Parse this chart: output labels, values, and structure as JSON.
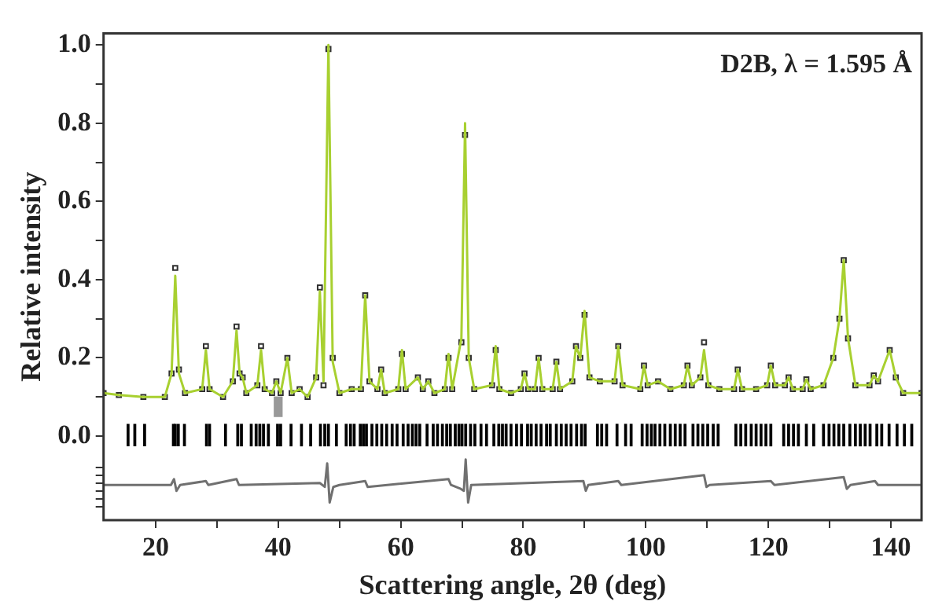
{
  "chart_data": {
    "type": "line",
    "xlabel": "Scattering angle, 2θ (deg)",
    "ylabel": "Relative intensity",
    "annotations": [
      "D2B, λ = 1.595 Å"
    ],
    "xlim": [
      11.5,
      145
    ],
    "ylim": [
      -0.215,
      1.03
    ],
    "xticks": [
      20,
      {
        "value": 30,
        "label": null
      },
      40,
      {
        "value": 50,
        "label": null
      },
      60,
      {
        "value": 70,
        "label": null
      },
      80,
      {
        "value": 90,
        "label": null
      },
      100,
      {
        "value": 110,
        "label": null
      },
      120,
      {
        "value": 130,
        "label": null
      },
      140
    ],
    "yticks": [
      {
        "value": -0.18,
        "label": null
      },
      {
        "value": -0.16,
        "label": null
      },
      {
        "value": -0.14,
        "label": null
      },
      {
        "value": -0.12,
        "label": null
      },
      {
        "value": -0.1,
        "label": null
      },
      {
        "value": -0.08,
        "label": null
      },
      {
        "value": 0,
        "label": "0.0"
      },
      {
        "value": 0.1,
        "label": null
      },
      0.2,
      {
        "value": 0.3,
        "label": null
      },
      0.4,
      {
        "value": 0.5,
        "label": null
      },
      0.6,
      {
        "value": 0.7,
        "label": null
      },
      0.8,
      {
        "value": 0.9,
        "label": null
      },
      {
        "value": 1,
        "label": "1.0"
      }
    ],
    "grid": false,
    "legend": false,
    "x": [
      11.5,
      14,
      18,
      21.5,
      22.6,
      23.2,
      23.8,
      24.8,
      27.6,
      28.2,
      28.8,
      31,
      32.6,
      33.2,
      33.7,
      34.2,
      34.8,
      36.6,
      37.2,
      37.8,
      39,
      39.7,
      40.4,
      41.5,
      42.2,
      43.5,
      44.8,
      46.2,
      46.8,
      47.4,
      48.2,
      48.9,
      50,
      52,
      53.5,
      54.2,
      54.9,
      56.2,
      56.8,
      57.4,
      59.6,
      60.2,
      60.8,
      62.8,
      63.6,
      64.5,
      65.5,
      67.2,
      67.8,
      68.4,
      69.9,
      70.5,
      71.1,
      72,
      74.9,
      75.5,
      76.1,
      78,
      79.6,
      80.2,
      80.8,
      81.9,
      82.5,
      83.1,
      84.8,
      85.4,
      86,
      88,
      88.6,
      89.3,
      90,
      90.8,
      92.5,
      94.9,
      95.5,
      96.2,
      99.1,
      99.7,
      100.3,
      102,
      104,
      106.2,
      106.8,
      107.5,
      108.9,
      109.5,
      110.2,
      112,
      114.4,
      115,
      115.7,
      118,
      119.8,
      120.4,
      121.1,
      122.7,
      123.3,
      124,
      125.6,
      126.2,
      126.9,
      129,
      130.6,
      131.6,
      132.3,
      133,
      134.2,
      136.5,
      137.2,
      137.9,
      139.8,
      140.8,
      142,
      145
    ],
    "series": [
      {
        "type": "scatter",
        "marker": "square",
        "color": "#303030",
        "values": [
          0.11,
          0.105,
          0.1,
          0.1,
          0.16,
          0.43,
          0.17,
          0.11,
          0.12,
          0.23,
          0.12,
          0.1,
          0.14,
          0.28,
          0.16,
          0.15,
          0.11,
          0.13,
          0.23,
          0.12,
          0.11,
          0.14,
          0.11,
          0.2,
          0.11,
          0.12,
          0.1,
          0.15,
          0.38,
          0.13,
          0.99,
          0.2,
          0.11,
          0.12,
          0.12,
          0.36,
          0.14,
          0.12,
          0.17,
          0.11,
          0.12,
          0.21,
          0.12,
          0.15,
          0.12,
          0.14,
          0.11,
          0.12,
          0.2,
          0.12,
          0.24,
          0.77,
          0.2,
          0.12,
          0.13,
          0.22,
          0.12,
          0.11,
          0.12,
          0.16,
          0.12,
          0.12,
          0.2,
          0.12,
          0.12,
          0.19,
          0.12,
          0.14,
          0.23,
          0.2,
          0.31,
          0.15,
          0.14,
          0.14,
          0.23,
          0.13,
          0.12,
          0.18,
          0.13,
          0.14,
          0.12,
          0.13,
          0.18,
          0.13,
          0.15,
          0.24,
          0.13,
          0.12,
          0.12,
          0.17,
          0.12,
          0.12,
          0.13,
          0.18,
          0.13,
          0.13,
          0.15,
          0.12,
          0.12,
          0.145,
          0.12,
          0.13,
          0.2,
          0.3,
          0.45,
          0.25,
          0.13,
          0.13,
          0.155,
          0.14,
          0.22,
          0.15,
          0.11,
          0.11
        ]
      },
      {
        "marker": "none",
        "color": "#a8d030",
        "values": [
          0.11,
          0.105,
          0.1,
          0.1,
          0.16,
          0.41,
          0.16,
          0.11,
          0.12,
          0.22,
          0.12,
          0.1,
          0.14,
          0.27,
          0.16,
          0.15,
          0.11,
          0.13,
          0.22,
          0.12,
          0.11,
          0.14,
          0.11,
          0.2,
          0.11,
          0.12,
          0.1,
          0.15,
          0.37,
          0.14,
          1.0,
          0.19,
          0.11,
          0.12,
          0.12,
          0.36,
          0.14,
          0.12,
          0.17,
          0.11,
          0.12,
          0.22,
          0.12,
          0.15,
          0.12,
          0.14,
          0.11,
          0.12,
          0.21,
          0.12,
          0.25,
          0.8,
          0.2,
          0.12,
          0.13,
          0.23,
          0.12,
          0.11,
          0.12,
          0.16,
          0.12,
          0.12,
          0.2,
          0.12,
          0.12,
          0.19,
          0.12,
          0.14,
          0.23,
          0.2,
          0.32,
          0.15,
          0.14,
          0.14,
          0.23,
          0.13,
          0.12,
          0.18,
          0.13,
          0.14,
          0.12,
          0.13,
          0.18,
          0.13,
          0.15,
          0.22,
          0.13,
          0.12,
          0.12,
          0.17,
          0.12,
          0.12,
          0.13,
          0.18,
          0.13,
          0.13,
          0.15,
          0.12,
          0.12,
          0.145,
          0.12,
          0.13,
          0.2,
          0.3,
          0.45,
          0.25,
          0.13,
          0.13,
          0.155,
          0.14,
          0.22,
          0.15,
          0.11,
          0.11
        ]
      },
      {
        "type": "line",
        "marker": "none",
        "color": "#707070",
        "x": [
          11.5,
          22.5,
          23,
          23.4,
          24,
          28.2,
          28.6,
          33.2,
          33.6,
          46.8,
          47.6,
          48,
          48.4,
          49,
          50,
          54.2,
          54.6,
          67.8,
          68.2,
          69.8,
          70.3,
          70.6,
          71,
          71.5,
          89.8,
          90.2,
          90.6,
          95.5,
          96,
          109.5,
          109.9,
          110.4,
          120.4,
          121,
          132.3,
          132.8,
          133.4,
          137.4,
          137.9,
          145
        ],
        "values": [
          -0.125,
          -0.125,
          -0.11,
          -0.14,
          -0.125,
          -0.115,
          -0.125,
          -0.11,
          -0.125,
          -0.12,
          -0.13,
          -0.07,
          -0.17,
          -0.13,
          -0.125,
          -0.115,
          -0.13,
          -0.11,
          -0.125,
          -0.135,
          -0.14,
          -0.06,
          -0.17,
          -0.125,
          -0.115,
          -0.14,
          -0.125,
          -0.115,
          -0.125,
          -0.1,
          -0.13,
          -0.125,
          -0.115,
          -0.125,
          -0.105,
          -0.135,
          -0.125,
          -0.115,
          -0.125,
          -0.125
        ]
      },
      {
        "type": "bar",
        "color": "#000000",
        "x": [
          15.5,
          16.6,
          18.2,
          22.9,
          23.2,
          23.7,
          24.7,
          28.3,
          28.8,
          31.4,
          33.4,
          34.0,
          35.6,
          36.4,
          37.0,
          37.6,
          38.4,
          39.9,
          40.4,
          42.1,
          43.8,
          45.3,
          46.9,
          47.6,
          48.2,
          49.5,
          51.1,
          51.8,
          52.4,
          53.4,
          53.9,
          54.4,
          55.3,
          56.1,
          56.9,
          57.7,
          58.6,
          59.4,
          60.4,
          61.2,
          61.9,
          62.5,
          63.1,
          64.3,
          65.3,
          66.0,
          66.8,
          67.5,
          68.1,
          68.9,
          69.5,
          70.0,
          70.6,
          71.4,
          72.1,
          73.1,
          74.0,
          75.2,
          76.0,
          76.6,
          77.2,
          78.0,
          78.9,
          79.7,
          80.7,
          81.3,
          82.1,
          82.9,
          83.8,
          84.4,
          85.4,
          86.2,
          87.0,
          87.8,
          88.7,
          89.5,
          90.1,
          92.1,
          92.8,
          93.6,
          95.3,
          96.7,
          97.6,
          99.4,
          100.2,
          100.9,
          101.5,
          102.3,
          103.1,
          104.0,
          104.8,
          105.6,
          106.4,
          107.7,
          108.5,
          109.3,
          110.1,
          111.0,
          111.8,
          114.7,
          115.5,
          116.3,
          117.2,
          118.0,
          118.8,
          119.6,
          120.4,
          122.5,
          123.3,
          124.1,
          124.9,
          126.2,
          127.4,
          129.0,
          129.9,
          130.7,
          131.5,
          132.3,
          133.3,
          134.2,
          135.0,
          135.8,
          136.6,
          137.7,
          138.5,
          139.7,
          141.0,
          142.2,
          143.4
        ],
        "base": [
          -0.025,
          -0.025,
          -0.025,
          -0.025,
          -0.025,
          -0.025,
          -0.025,
          -0.025,
          -0.025,
          -0.025,
          -0.025,
          -0.025,
          -0.025,
          -0.025,
          -0.025,
          -0.025,
          -0.025,
          -0.025,
          -0.025,
          -0.025,
          -0.025,
          -0.025,
          -0.025,
          -0.025,
          -0.025,
          -0.025,
          -0.025,
          -0.025,
          -0.025,
          -0.025,
          -0.025,
          -0.025,
          -0.025,
          -0.025,
          -0.025,
          -0.025,
          -0.025,
          -0.025,
          -0.025,
          -0.025,
          -0.025,
          -0.025,
          -0.025,
          -0.025,
          -0.025,
          -0.025,
          -0.025,
          -0.025,
          -0.025,
          -0.025,
          -0.025,
          -0.025,
          -0.025,
          -0.025,
          -0.025,
          -0.025,
          -0.025,
          -0.025,
          -0.025,
          -0.025,
          -0.025,
          -0.025,
          -0.025,
          -0.025,
          -0.025,
          -0.025,
          -0.025,
          -0.025,
          -0.025,
          -0.025,
          -0.025,
          -0.025,
          -0.025,
          -0.025,
          -0.025,
          -0.025,
          -0.025,
          -0.025,
          -0.025,
          -0.025,
          -0.025,
          -0.025,
          -0.025,
          -0.025,
          -0.025,
          -0.025,
          -0.025,
          -0.025,
          -0.025,
          -0.025,
          -0.025,
          -0.025,
          -0.025,
          -0.025,
          -0.025,
          -0.025,
          -0.025,
          -0.025,
          -0.025,
          -0.025,
          -0.025,
          -0.025,
          -0.025,
          -0.025,
          -0.025,
          -0.025,
          -0.025,
          -0.025,
          -0.025,
          -0.025,
          -0.025,
          -0.025,
          -0.025,
          -0.025,
          -0.025,
          -0.025,
          -0.025,
          -0.025,
          -0.025,
          -0.025,
          -0.025,
          -0.025,
          -0.025,
          -0.025,
          -0.025,
          -0.025,
          -0.025,
          -0.025,
          -0.025
        ],
        "values": [
          0.055,
          0.055,
          0.055,
          0.055,
          0.055,
          0.055,
          0.055,
          0.055,
          0.055,
          0.055,
          0.055,
          0.055,
          0.055,
          0.055,
          0.055,
          0.055,
          0.055,
          0.055,
          0.055,
          0.055,
          0.055,
          0.055,
          0.055,
          0.055,
          0.055,
          0.055,
          0.055,
          0.055,
          0.055,
          0.055,
          0.055,
          0.055,
          0.055,
          0.055,
          0.055,
          0.055,
          0.055,
          0.055,
          0.055,
          0.055,
          0.055,
          0.055,
          0.055,
          0.055,
          0.055,
          0.055,
          0.055,
          0.055,
          0.055,
          0.055,
          0.055,
          0.055,
          0.055,
          0.055,
          0.055,
          0.055,
          0.055,
          0.055,
          0.055,
          0.055,
          0.055,
          0.055,
          0.055,
          0.055,
          0.055,
          0.055,
          0.055,
          0.055,
          0.055,
          0.055,
          0.055,
          0.055,
          0.055,
          0.055,
          0.055,
          0.055,
          0.055,
          0.055,
          0.055,
          0.055,
          0.055,
          0.055,
          0.055,
          0.055,
          0.055,
          0.055,
          0.055,
          0.055,
          0.055,
          0.055,
          0.055,
          0.055,
          0.055,
          0.055,
          0.055,
          0.055,
          0.055,
          0.055,
          0.055,
          0.055,
          0.055,
          0.055,
          0.055,
          0.055,
          0.055,
          0.055,
          0.055,
          0.055,
          0.055,
          0.055,
          0.055,
          0.055,
          0.055,
          0.055,
          0.055,
          0.055,
          0.055,
          0.055,
          0.055,
          0.055,
          0.055,
          0.055,
          0.055,
          0.055,
          0.055,
          0.055,
          0.055,
          0.055,
          0.055
        ]
      },
      {
        "type": "bar",
        "color": "#999999",
        "x": [
          40
        ],
        "base": [
          0.05
        ],
        "values": [
          0.05
        ]
      }
    ]
  }
}
